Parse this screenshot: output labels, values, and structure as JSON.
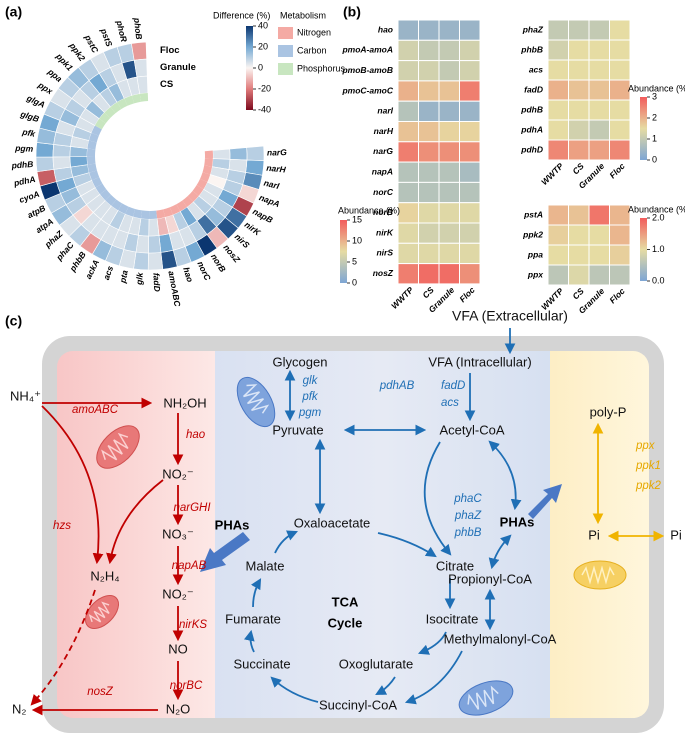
{
  "panel_a": {
    "label": "(a)",
    "rings": [
      "Floc",
      "Granule",
      "CS"
    ],
    "colorbar": {
      "title": "Difference (%)",
      "lim": [
        -40,
        40
      ],
      "ticks": [
        40,
        20,
        0,
        -20,
        -40
      ],
      "colormap": [
        "#7d0a1e",
        "#e07b7b",
        "#fbf5f2",
        "#74a9d3",
        "#0b3670"
      ]
    },
    "legend_title": "Metabolism",
    "groups": [
      {
        "name": "Nitrogen",
        "color": "#f4aaa4",
        "genes": [
          {
            "name": "narG",
            "values": [
              10,
              15,
              5
            ]
          },
          {
            "name": "narH",
            "values": [
              20,
              5,
              10
            ]
          },
          {
            "name": "narI",
            "values": [
              25,
              10,
              5
            ]
          },
          {
            "name": "napA",
            "values": [
              -5,
              10,
              0
            ]
          },
          {
            "name": "napB",
            "values": [
              -30,
              20,
              5
            ]
          },
          {
            "name": "nirK",
            "values": [
              30,
              10,
              5
            ]
          },
          {
            "name": "nirS",
            "values": [
              35,
              15,
              10
            ]
          },
          {
            "name": "nosZ",
            "values": [
              -10,
              30,
              5
            ]
          },
          {
            "name": "norB",
            "values": [
              40,
              10,
              20
            ]
          },
          {
            "name": "norC",
            "values": [
              20,
              5,
              10
            ]
          },
          {
            "name": "hao",
            "values": [
              10,
              5,
              -5
            ]
          },
          {
            "name": "amoABC",
            "values": [
              35,
              20,
              -10
            ]
          }
        ]
      },
      {
        "name": "Carbon",
        "color": "#aac4e2",
        "genes": [
          {
            "name": "fadD",
            "values": [
              5,
              10,
              5
            ]
          },
          {
            "name": "glk",
            "values": [
              10,
              5,
              10
            ]
          },
          {
            "name": "pta",
            "values": [
              5,
              10,
              5
            ]
          },
          {
            "name": "acs",
            "values": [
              10,
              5,
              5
            ]
          },
          {
            "name": "ackA",
            "values": [
              15,
              5,
              10
            ]
          },
          {
            "name": "phbB",
            "values": [
              -15,
              5,
              5
            ]
          },
          {
            "name": "phaC",
            "values": [
              10,
              5,
              5
            ]
          },
          {
            "name": "phaZ",
            "values": [
              5,
              -5,
              5
            ]
          },
          {
            "name": "atpA",
            "values": [
              15,
              10,
              5
            ]
          },
          {
            "name": "atpB",
            "values": [
              10,
              15,
              5
            ]
          },
          {
            "name": "cyoA",
            "values": [
              40,
              20,
              10
            ]
          },
          {
            "name": "pdhA",
            "values": [
              -25,
              10,
              15
            ]
          },
          {
            "name": "pdhB",
            "values": [
              10,
              5,
              20
            ]
          },
          {
            "name": "pgm",
            "values": [
              20,
              10,
              15
            ]
          },
          {
            "name": "pfk",
            "values": [
              15,
              10,
              5
            ]
          },
          {
            "name": "glgB",
            "values": [
              20,
              5,
              10
            ]
          },
          {
            "name": "glgA",
            "values": [
              10,
              15,
              5
            ]
          }
        ]
      },
      {
        "name": "Phosphorus",
        "color": "#c8e6c0",
        "genes": [
          {
            "name": "ppx",
            "values": [
              5,
              10,
              5
            ]
          },
          {
            "name": "ppa",
            "values": [
              10,
              5,
              15
            ]
          },
          {
            "name": "ppk1",
            "values": [
              15,
              10,
              5
            ]
          },
          {
            "name": "ppk2",
            "values": [
              10,
              20,
              10
            ]
          },
          {
            "name": "pstC",
            "values": [
              5,
              10,
              15
            ]
          },
          {
            "name": "pstS",
            "values": [
              10,
              5,
              5
            ]
          },
          {
            "name": "phoR",
            "values": [
              10,
              35,
              5
            ]
          },
          {
            "name": "phoB",
            "values": [
              -15,
              5,
              5
            ]
          }
        ]
      }
    ]
  },
  "panel_b": {
    "label": "(b)",
    "columns": [
      "WWTP",
      "CS",
      "Granule",
      "Floc"
    ],
    "heatmaps": [
      {
        "rows": [
          {
            "name": "hao",
            "values": [
              2,
              2,
              2,
              2
            ]
          },
          {
            "name": "pmoA-amoA",
            "values": [
              6,
              5,
              5,
              6
            ]
          },
          {
            "name": "pmoB-amoB",
            "values": [
              6,
              6,
              5,
              6
            ]
          },
          {
            "name": "pmoC-amoC",
            "values": [
              10,
              9,
              9,
              13
            ]
          },
          {
            "name": "narI",
            "values": [
              4,
              2,
              2,
              2
            ]
          },
          {
            "name": "narH",
            "values": [
              9,
              9,
              8,
              8
            ]
          },
          {
            "name": "narG",
            "values": [
              13,
              12,
              12,
              12
            ]
          },
          {
            "name": "napA",
            "values": [
              4,
              4,
              4,
              3
            ]
          },
          {
            "name": "norC",
            "values": [
              4,
              4,
              4,
              4
            ]
          },
          {
            "name": "norB",
            "values": [
              8,
              7,
              7,
              7
            ]
          },
          {
            "name": "nirK",
            "values": [
              7,
              6,
              6,
              6
            ]
          },
          {
            "name": "nirS",
            "values": [
              7,
              7,
              7,
              7
            ]
          },
          {
            "name": "nosZ",
            "values": [
              13,
              14,
              14,
              12
            ]
          }
        ],
        "colorbar": {
          "title": "Abundance (%)",
          "lim": [
            0,
            15
          ],
          "ticks": [
            0,
            5,
            10,
            15
          ]
        }
      },
      {
        "rows": [
          {
            "name": "phaZ",
            "values": [
              1,
              1,
              1,
              1.5
            ]
          },
          {
            "name": "phbB",
            "values": [
              1.2,
              1.5,
              1.5,
              1.5
            ]
          },
          {
            "name": "acs",
            "values": [
              1.5,
              1.5,
              1.5,
              1.5
            ]
          },
          {
            "name": "fadD",
            "values": [
              2,
              1.8,
              1.8,
              2
            ]
          },
          {
            "name": "pdhB",
            "values": [
              1.5,
              1.5,
              1.5,
              1.5
            ]
          },
          {
            "name": "pdhA",
            "values": [
              1.5,
              1.2,
              1,
              1.5
            ]
          },
          {
            "name": "pdhD",
            "values": [
              2.5,
              2.2,
              2.2,
              2.5
            ]
          }
        ],
        "colorbar": {
          "title": "Abundance (%)",
          "lim": [
            0,
            3
          ],
          "ticks": [
            0,
            1,
            2,
            3
          ]
        }
      },
      {
        "rows": [
          {
            "name": "pstA",
            "values": [
              1.3,
              1.2,
              1.8,
              1.3
            ]
          },
          {
            "name": "ppk2",
            "values": [
              1.1,
              1,
              1,
              1.3
            ]
          },
          {
            "name": "ppa",
            "values": [
              1,
              1,
              1,
              1.1
            ]
          },
          {
            "name": "ppx",
            "values": [
              0.6,
              0.9,
              0.6,
              0.6
            ]
          }
        ],
        "colorbar": {
          "title": "Abundance (%)",
          "lim": [
            0,
            2
          ],
          "ticks": [
            {
              "value": 0,
              "label": "0.0"
            },
            {
              "value": 1,
              "label": "1.0"
            },
            {
              "value": 2,
              "label": "2.0"
            }
          ]
        }
      }
    ],
    "colormap": [
      "#7ea6d4",
      "#e6dca3",
      "#f25c5c"
    ]
  },
  "panel_c": {
    "label": "(c)",
    "compounds": [
      "VFA (Extracellular)",
      "VFA (Intracellular)",
      "Glycogen",
      "Pyruvate",
      "Acetyl-CoA",
      "Oxaloacetate",
      "Malate",
      "Citrate",
      "Fumarate",
      "Isocitrate",
      "Succinate",
      "Oxoglutarate",
      "Succinyl-CoA",
      "Propionyl-CoA",
      "Methylmalonyl-CoA",
      "poly-P",
      "Pi",
      "Pi"
    ],
    "cycle_label": [
      "TCA",
      "Cycle"
    ],
    "storage": [
      "PHAs",
      "PHAs"
    ],
    "nitrogen_species": [
      "NH₄⁺",
      "NH₂OH",
      "NO₂⁻",
      "NO₃⁻",
      "NO₂⁻",
      "NO",
      "N₂O",
      "N₂",
      "N₂H₄"
    ],
    "nitrogen_genes": [
      "amoABC",
      "hao",
      "narGHI",
      "napAB",
      "nirKS",
      "norBC",
      "nosZ",
      "hzs"
    ],
    "carbon_genes": [
      "glk",
      "pfk",
      "pgm",
      "fadD",
      "acs",
      "pdhAB",
      "phaC",
      "phaZ",
      "phbB"
    ],
    "phosphorus_genes": [
      "ppx",
      "ppk1",
      "ppk2"
    ]
  }
}
